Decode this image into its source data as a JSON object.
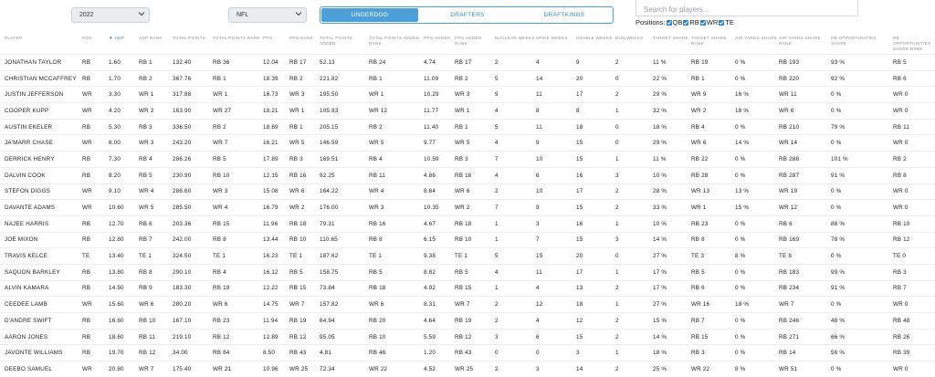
{
  "filters": {
    "year": "2022",
    "league": "NFL"
  },
  "tabs": [
    "UNDERDOG",
    "DRAFTERS",
    "DRAFTKINGS"
  ],
  "search": {
    "placeholder": "Search for players..."
  },
  "positions": {
    "label": "Positions:",
    "options": [
      "QB",
      "RB",
      "WR",
      "TE"
    ]
  },
  "table": {
    "sort_arrow": "▼",
    "headers": [
      {
        "key": "player",
        "label": "PLAYER"
      },
      {
        "key": "pos",
        "label": "POS"
      },
      {
        "key": "adp",
        "label": "ADP"
      },
      {
        "key": "adp_rank",
        "label": "ADP RANK"
      },
      {
        "key": "total_points",
        "label": "TOTAL POINTS"
      },
      {
        "key": "total_points_rank",
        "label": "TOTAL POINTS RANK"
      },
      {
        "key": "ppg",
        "label": "PPG"
      },
      {
        "key": "ppg_rank",
        "label": "PPG RANK"
      },
      {
        "key": "total_points_added",
        "label": "TOTAL POINTS ADDED"
      },
      {
        "key": "total_points_added_rank",
        "label": "TOTAL POINTS ADDED RANK"
      },
      {
        "key": "ppg_added",
        "label": "PPG ADDED"
      },
      {
        "key": "ppg_added_rank",
        "label": "PPG ADDED RANK"
      },
      {
        "key": "nuclear_weeks",
        "label": "NUCLEAR WEEKS"
      },
      {
        "key": "spike_weeks",
        "label": "SPIKE WEEKS"
      },
      {
        "key": "usable_weeks",
        "label": "USABLE WEEKS"
      },
      {
        "key": "dud_weeks",
        "label": "DUD WEEKS"
      },
      {
        "key": "target_share",
        "label": "TARGET SHARE"
      },
      {
        "key": "target_share_rank",
        "label": "TARGET SHARE RANK"
      },
      {
        "key": "air_yards_share",
        "label": "AIR YARDS SHARE"
      },
      {
        "key": "air_yards_share_rank",
        "label": "AIR YARDS SHARE RANK"
      },
      {
        "key": "rb_opp_share",
        "label": "RB OPPORTUNITIES SHARE"
      },
      {
        "key": "rb_opp_share_rank",
        "label": "RB OPPORTUNITIES SHARE RANK"
      }
    ],
    "rows": [
      [
        "JONATHAN TAYLOR",
        "RB",
        "1.60",
        "RB 1",
        "132.40",
        "RB 36",
        "12.04",
        "RB 17",
        "52.13",
        "RB 24",
        "4.74",
        "RB 17",
        "2",
        "4",
        "9",
        "2",
        "11 %",
        "RB 19",
        "0 %",
        "RB 193",
        "93 %",
        "RB 5"
      ],
      [
        "CHRISTIAN MCCAFFREY",
        "RB",
        "1.70",
        "RB 2",
        "367.76",
        "RB 1",
        "18.39",
        "RB 2",
        "221.82",
        "RB 1",
        "11.09",
        "RB 2",
        "5",
        "14",
        "20",
        "0",
        "22 %",
        "RB 1",
        "0 %",
        "RB 220",
        "92 %",
        "RB 6"
      ],
      [
        "JUSTIN JEFFERSON",
        "WR",
        "3.30",
        "WR 1",
        "317.88",
        "WR 1",
        "16.73",
        "WR 3",
        "195.50",
        "WR 1",
        "10.29",
        "WR 3",
        "9",
        "11",
        "17",
        "2",
        "29 %",
        "WR 9",
        "16 %",
        "WR 11",
        "0 %",
        "WR 0"
      ],
      [
        "COOPER KUPP",
        "WR",
        "4.20",
        "WR 2",
        "163.90",
        "WR 27",
        "18.21",
        "WR 1",
        "105.93",
        "WR 12",
        "11.77",
        "WR 1",
        "4",
        "8",
        "8",
        "1",
        "32 %",
        "WR 2",
        "18 %",
        "WR 6",
        "0 %",
        "WR 0"
      ],
      [
        "AUSTIN EKELER",
        "RB",
        "5.30",
        "RB 3",
        "336.50",
        "RB 2",
        "18.69",
        "RB 1",
        "205.15",
        "RB 2",
        "11.40",
        "RB 1",
        "5",
        "11",
        "18",
        "0",
        "18 %",
        "RB 4",
        "0 %",
        "RB 210",
        "79 %",
        "RB 11"
      ],
      [
        "JA'MARR CHASE",
        "WR",
        "6.00",
        "WR 3",
        "243.20",
        "WR 7",
        "16.21",
        "WR 5",
        "146.59",
        "WR 5",
        "9.77",
        "WR 5",
        "4",
        "9",
        "15",
        "0",
        "29 %",
        "WR 6",
        "14 %",
        "WR 14",
        "0 %",
        "WR 0"
      ],
      [
        "DERRICK HENRY",
        "RB",
        "7.30",
        "RB 4",
        "286.26",
        "RB 5",
        "17.89",
        "RB 3",
        "169.51",
        "RB 4",
        "10.59",
        "RB 3",
        "7",
        "10",
        "15",
        "1",
        "11 %",
        "RB 22",
        "0 %",
        "RB 288",
        "101 %",
        "RB 2"
      ],
      [
        "DALVIN COOK",
        "RB",
        "8.20",
        "RB 5",
        "230.90",
        "RB 10",
        "12.15",
        "RB 16",
        "92.25",
        "RB 11",
        "4.86",
        "RB 16",
        "4",
        "6",
        "16",
        "3",
        "10 %",
        "RB 28",
        "0 %",
        "RB 287",
        "91 %",
        "RB 8"
      ],
      [
        "STEFON DIGGS",
        "WR",
        "9.10",
        "WR 4",
        "286.60",
        "WR 3",
        "15.08",
        "WR 6",
        "164.22",
        "WR 4",
        "8.64",
        "WR 6",
        "2",
        "10",
        "17",
        "2",
        "28 %",
        "WR 13",
        "13 %",
        "WR 19",
        "0 %",
        "WR 0"
      ],
      [
        "DAVANTE ADAMS",
        "WR",
        "10.60",
        "WR 5",
        "285.50",
        "WR 4",
        "16.79",
        "WR 2",
        "176.00",
        "WR 3",
        "10.35",
        "WR 2",
        "7",
        "9",
        "15",
        "2",
        "33 %",
        "WR 1",
        "15 %",
        "WR 12",
        "0 %",
        "WR 0"
      ],
      [
        "NAJEE HARRIS",
        "RB",
        "12.70",
        "RB 6",
        "203.36",
        "RB 15",
        "11.96",
        "RB 18",
        "79.31",
        "RB 16",
        "4.67",
        "RB 18",
        "1",
        "3",
        "16",
        "1",
        "10 %",
        "RB 23",
        "0 %",
        "RB 6",
        "88 %",
        "RB 10"
      ],
      [
        "JOE MIXON",
        "RB",
        "12.80",
        "RB 7",
        "242.00",
        "RB 8",
        "13.44",
        "RB 10",
        "110.65",
        "RB 8",
        "6.15",
        "RB 10",
        "1",
        "7",
        "15",
        "3",
        "14 %",
        "RB 8",
        "0 %",
        "RB 169",
        "78 %",
        "RB 12"
      ],
      [
        "TRAVIS KELCE",
        "TE",
        "13.40",
        "TE 1",
        "324.50",
        "TE 1",
        "16.23",
        "TE 1",
        "187.62",
        "TE 1",
        "9.38",
        "TE 1",
        "5",
        "15",
        "20",
        "0",
        "27 %",
        "TE 3",
        "8 %",
        "TE 8",
        "0 %",
        "TE 0"
      ],
      [
        "SAQUON BARKLEY",
        "RB",
        "13.80",
        "RB 8",
        "290.10",
        "RB 4",
        "16.12",
        "RB 5",
        "158.75",
        "RB 5",
        "8.82",
        "RB 5",
        "4",
        "11",
        "17",
        "1",
        "17 %",
        "RB 5",
        "0 %",
        "RB 183",
        "99 %",
        "RB 3"
      ],
      [
        "ALVIN KAMARA",
        "RB",
        "14.50",
        "RB 9",
        "183.30",
        "RB 19",
        "12.22",
        "RB 15",
        "73.84",
        "RB 18",
        "4.92",
        "RB 15",
        "1",
        "4",
        "13",
        "2",
        "17 %",
        "RB 6",
        "0 %",
        "RB 234",
        "91 %",
        "RB 7"
      ],
      [
        "CEEDEE LAMB",
        "WR",
        "15.60",
        "WR 6",
        "280.20",
        "WR 6",
        "14.75",
        "WR 7",
        "157.82",
        "WR 6",
        "8.31",
        "WR 7",
        "2",
        "12",
        "18",
        "1",
        "27 %",
        "WR 16",
        "18 %",
        "WR 7",
        "0 %",
        "WR 0"
      ],
      [
        "D'ANDRE SWIFT",
        "RB",
        "16.60",
        "RB 10",
        "167.10",
        "RB 23",
        "11.94",
        "RB 19",
        "64.94",
        "RB 20",
        "4.64",
        "RB 19",
        "2",
        "4",
        "12",
        "2",
        "15 %",
        "RB 7",
        "0 %",
        "RB 246",
        "48 %",
        "RB 48"
      ],
      [
        "AARON JONES",
        "RB",
        "18.60",
        "RB 11",
        "219.10",
        "RB 12",
        "12.89",
        "RB 12",
        "95.05",
        "RB 10",
        "5.59",
        "RB 12",
        "3",
        "6",
        "15",
        "2",
        "14 %",
        "RB 15",
        "0 %",
        "RB 271",
        "66 %",
        "RB 26"
      ],
      [
        "JAVONTE WILLIAMS",
        "RB",
        "19.70",
        "RB 12",
        "34.00",
        "RB 84",
        "8.50",
        "RB 43",
        "4.81",
        "RB 46",
        "1.20",
        "RB 43",
        "0",
        "0",
        "3",
        "1",
        "18 %",
        "RB 3",
        "0 %",
        "RB 14",
        "56 %",
        "RB 39"
      ],
      [
        "DEEBO SAMUEL",
        "WR",
        "20.80",
        "WR 7",
        "175.40",
        "WR 21",
        "10.96",
        "WR 25",
        "72.34",
        "WR 22",
        "4.52",
        "WR 25",
        "2",
        "3",
        "14",
        "2",
        "25 %",
        "WR 22",
        "8 %",
        "WR 51",
        "0 %",
        "WR 0"
      ]
    ]
  }
}
